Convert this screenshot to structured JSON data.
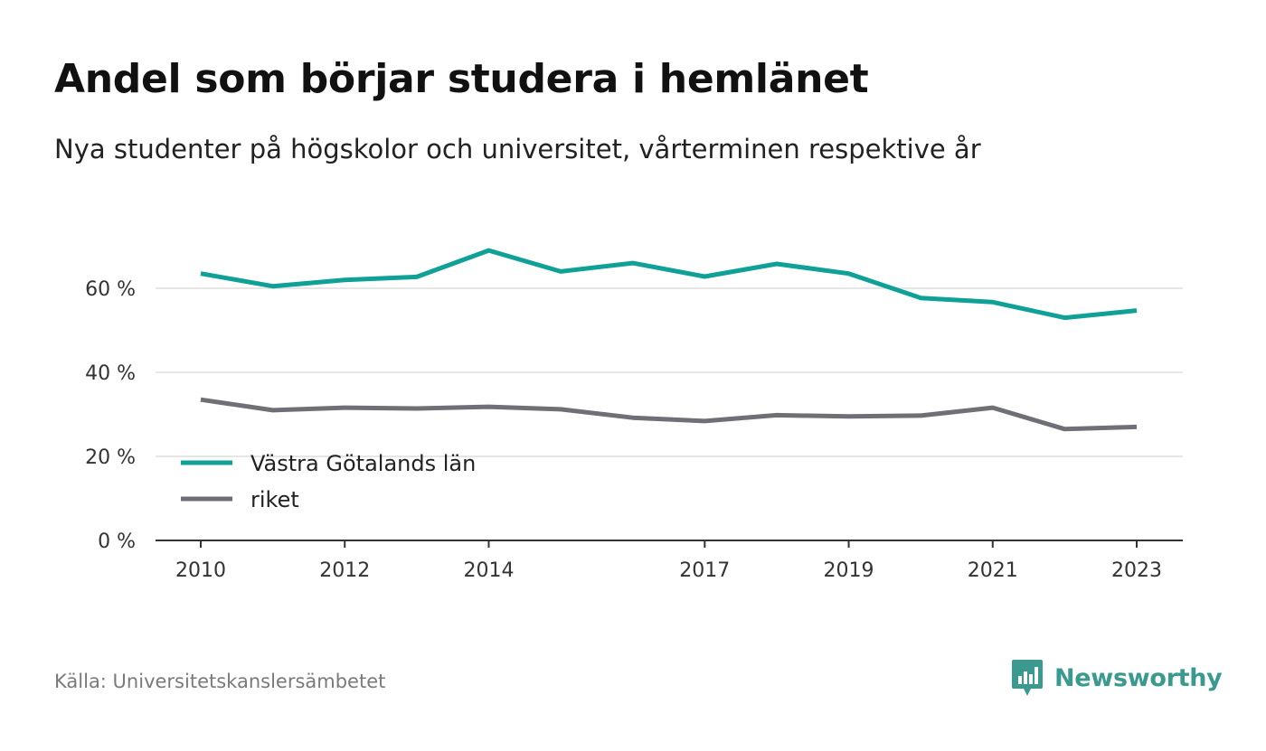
{
  "header": {
    "title": "Andel som börjar studera i hemlänet",
    "subtitle": "Nya studenter på högskolor och universitet, vårterminen respektive år"
  },
  "footer": {
    "source": "Källa: Universitetskanslersämbetet",
    "brand": "Newsworthy",
    "brand_icon": "newsworthy-logo-icon",
    "brand_color": "#3a9a8f"
  },
  "chart_data": {
    "type": "line",
    "x": [
      2010,
      2011,
      2012,
      2013,
      2014,
      2015,
      2016,
      2017,
      2018,
      2019,
      2020,
      2021,
      2022,
      2023
    ],
    "x_tick_labels": [
      "2010",
      "2012",
      "2014",
      "2017",
      "2019",
      "2021",
      "2023"
    ],
    "y_tick_labels": [
      "0 %",
      "20 %",
      "40 %",
      "60 %"
    ],
    "y_ticks": [
      0,
      20,
      40,
      60
    ],
    "ylim": [
      0,
      70
    ],
    "grid": true,
    "legend_position": "bottom-left",
    "series": [
      {
        "name": "Västra Götalands län",
        "color": "#0fa197",
        "values": [
          63.5,
          60.5,
          62,
          62.7,
          69,
          64,
          66,
          62.8,
          65.8,
          63.5,
          57.7,
          56.7,
          53,
          54.7
        ]
      },
      {
        "name": "riket",
        "color": "#6f6f77",
        "values": [
          33.5,
          31,
          31.6,
          31.4,
          31.8,
          31.2,
          29.2,
          28.4,
          29.8,
          29.5,
          29.7,
          31.6,
          26.5,
          27
        ]
      }
    ]
  }
}
